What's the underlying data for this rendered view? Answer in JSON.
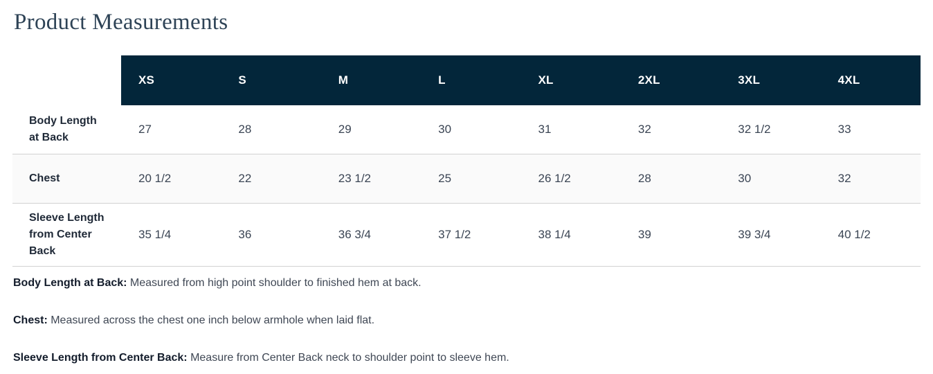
{
  "page": {
    "title": "Product Measurements"
  },
  "table": {
    "columns": [
      "XS",
      "S",
      "M",
      "L",
      "XL",
      "2XL",
      "3XL",
      "4XL"
    ],
    "rows": [
      {
        "label": "Body Length at Back",
        "highlighted": false,
        "values": [
          "27",
          "28",
          "29",
          "30",
          "31",
          "32",
          "32 1/2",
          "33"
        ]
      },
      {
        "label": "Chest",
        "highlighted": true,
        "values": [
          "20 1/2",
          "22",
          "23 1/2",
          "25",
          "26 1/2",
          "28",
          "30",
          "32"
        ]
      },
      {
        "label": "Sleeve Length from Center Back",
        "highlighted": false,
        "values": [
          "35 1/4",
          "36",
          "36 3/4",
          "37 1/2",
          "38 1/4",
          "39",
          "39 3/4",
          "40 1/2"
        ]
      }
    ]
  },
  "notes": [
    {
      "term": "Body Length at Back:",
      "description": "Measured from high point shoulder to finished hem at back."
    },
    {
      "term": "Chest:",
      "description": "Measured across the chest one inch below armhole when laid flat."
    },
    {
      "term": "Sleeve Length from Center Back:",
      "description": "Measure from Center Back neck to shoulder point to sleeve hem."
    }
  ],
  "colors": {
    "header_bg": "#03263a",
    "title": "#2e4356",
    "row_alt_bg": "#fafafa",
    "border": "#d2d2d2"
  }
}
